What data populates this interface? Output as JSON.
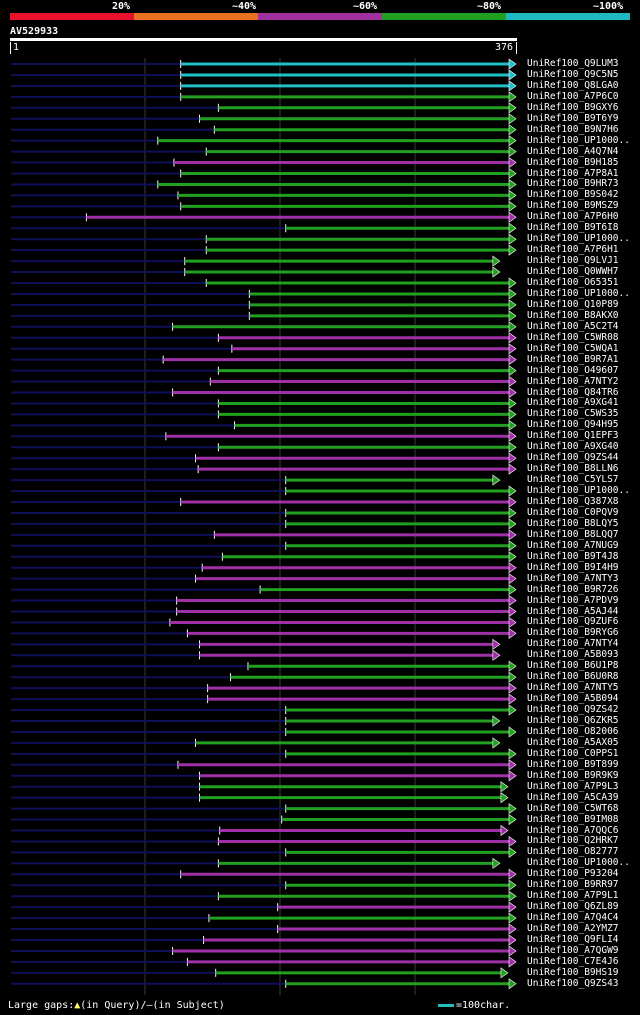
{
  "legend": {
    "labels": [
      "20%",
      "~40%",
      "~60%",
      "~80%",
      "~100%"
    ],
    "colors": [
      "#e8102a",
      "#e87020",
      "#a030a0",
      "#20a020",
      "#20b8c0"
    ]
  },
  "query": {
    "id": "AV529933",
    "start": "1",
    "end": "376"
  },
  "footer": {
    "gaps_prefix": "Large gaps:",
    "gaps_query": "(in Query)/",
    "gaps_dash": "—",
    "gaps_subject": "(in Subject)",
    "scale": "=100char."
  },
  "chart_data": {
    "type": "alignment",
    "query_length": 376,
    "hits": [
      {
        "name": "UniRef100_Q9LUM3",
        "start": 127,
        "end": 376,
        "color": "cyan",
        "arrow": true
      },
      {
        "name": "UniRef100_Q9C5N5",
        "start": 127,
        "end": 376,
        "color": "cyan",
        "arrow": true
      },
      {
        "name": "UniRef100_Q8LGA0",
        "start": 127,
        "end": 376,
        "color": "cyan",
        "arrow": true
      },
      {
        "name": "UniRef100_A7P6C0",
        "start": 127,
        "end": 376,
        "color": "green",
        "arrow": true
      },
      {
        "name": "UniRef100_B9GXY6",
        "start": 155,
        "end": 376,
        "color": "green",
        "arrow": true
      },
      {
        "name": "UniRef100_B9T6Y9",
        "start": 141,
        "end": 376,
        "color": "green",
        "arrow": true
      },
      {
        "name": "UniRef100_B9N7H6",
        "start": 152,
        "end": 376,
        "color": "green",
        "arrow": true
      },
      {
        "name": "UniRef100_UP1000..",
        "start": 110,
        "end": 376,
        "color": "green",
        "arrow": true
      },
      {
        "name": "UniRef100_A4Q7N4",
        "start": 146,
        "end": 376,
        "color": "green",
        "arrow": true
      },
      {
        "name": "UniRef100_B9H185",
        "start": 122,
        "end": 376,
        "color": "purple",
        "arrow": true
      },
      {
        "name": "UniRef100_A7P8A1",
        "start": 127,
        "end": 376,
        "color": "green",
        "arrow": true
      },
      {
        "name": "UniRef100_B9HR73",
        "start": 110,
        "end": 376,
        "color": "green",
        "arrow": true
      },
      {
        "name": "UniRef100_B9S042",
        "start": 125,
        "end": 376,
        "color": "green",
        "arrow": true
      },
      {
        "name": "UniRef100_B9MSZ9",
        "start": 127,
        "end": 376,
        "color": "green",
        "arrow": true
      },
      {
        "name": "UniRef100_A7P6H0",
        "start": 57,
        "end": 376,
        "color": "purple",
        "arrow": true
      },
      {
        "name": "UniRef100_B9T6I8",
        "start": 205,
        "end": 376,
        "color": "green",
        "arrow": true
      },
      {
        "name": "UniRef100_UP1000..",
        "start": 146,
        "end": 376,
        "color": "green",
        "arrow": true
      },
      {
        "name": "UniRef100_A7P6H1",
        "start": 146,
        "end": 376,
        "color": "green",
        "arrow": true
      },
      {
        "name": "UniRef100_Q9LVJ1",
        "start": 130,
        "end": 364,
        "color": "green",
        "arrow": true
      },
      {
        "name": "UniRef100_Q0WWH7",
        "start": 130,
        "end": 364,
        "color": "green",
        "arrow": true
      },
      {
        "name": "UniRef100_O65351",
        "start": 146,
        "end": 376,
        "color": "green",
        "arrow": true
      },
      {
        "name": "UniRef100_UP1000..",
        "start": 178,
        "end": 376,
        "color": "green",
        "arrow": true
      },
      {
        "name": "UniRef100_Q10P89",
        "start": 178,
        "end": 376,
        "color": "green",
        "arrow": true
      },
      {
        "name": "UniRef100_B8AKX0",
        "start": 178,
        "end": 376,
        "color": "green",
        "arrow": true
      },
      {
        "name": "UniRef100_A5C2T4",
        "start": 121,
        "end": 376,
        "color": "green",
        "arrow": true
      },
      {
        "name": "UniRef100_C5WR08",
        "start": 155,
        "end": 376,
        "color": "purple",
        "arrow": true
      },
      {
        "name": "UniRef100_C5WQA1",
        "start": 165,
        "end": 376,
        "color": "purple",
        "arrow": true
      },
      {
        "name": "UniRef100_B9R7A1",
        "start": 114,
        "end": 376,
        "color": "purple",
        "arrow": true
      },
      {
        "name": "UniRef100_O49607",
        "start": 155,
        "end": 376,
        "color": "green",
        "arrow": true
      },
      {
        "name": "UniRef100_A7NTY2",
        "start": 149,
        "end": 376,
        "color": "purple",
        "arrow": true
      },
      {
        "name": "UniRef100_Q84TR6",
        "start": 121,
        "end": 376,
        "color": "purple",
        "arrow": true
      },
      {
        "name": "UniRef100_A9XG41",
        "start": 155,
        "end": 376,
        "color": "green",
        "arrow": true
      },
      {
        "name": "UniRef100_C5WS35",
        "start": 155,
        "end": 376,
        "color": "green",
        "arrow": true
      },
      {
        "name": "UniRef100_Q94H95",
        "start": 167,
        "end": 376,
        "color": "green",
        "arrow": true
      },
      {
        "name": "UniRef100_Q1EPF3",
        "start": 116,
        "end": 376,
        "color": "purple",
        "arrow": true
      },
      {
        "name": "UniRef100_A9XG40",
        "start": 155,
        "end": 376,
        "color": "green",
        "arrow": true
      },
      {
        "name": "UniRef100_Q9ZS44",
        "start": 138,
        "end": 376,
        "color": "purple",
        "arrow": true
      },
      {
        "name": "UniRef100_B8LLN6",
        "start": 140,
        "end": 376,
        "color": "purple",
        "arrow": true
      },
      {
        "name": "UniRef100_C5YLS7",
        "start": 205,
        "end": 364,
        "color": "green",
        "arrow": true
      },
      {
        "name": "UniRef100_UP1000..",
        "start": 205,
        "end": 376,
        "color": "green",
        "arrow": true
      },
      {
        "name": "UniRef100_Q387X8",
        "start": 127,
        "end": 376,
        "color": "purple",
        "arrow": true
      },
      {
        "name": "UniRef100_C0PQV9",
        "start": 205,
        "end": 376,
        "color": "green",
        "arrow": true
      },
      {
        "name": "UniRef100_B8LQY5",
        "start": 205,
        "end": 376,
        "color": "green",
        "arrow": true
      },
      {
        "name": "UniRef100_B8LQQ7",
        "start": 152,
        "end": 376,
        "color": "purple",
        "arrow": true
      },
      {
        "name": "UniRef100_A7NUG9",
        "start": 205,
        "end": 376,
        "color": "green",
        "arrow": true
      },
      {
        "name": "UniRef100_B9T4J8",
        "start": 158,
        "end": 376,
        "color": "green",
        "arrow": true
      },
      {
        "name": "UniRef100_B9I4H9",
        "start": 143,
        "end": 376,
        "color": "purple",
        "arrow": true
      },
      {
        "name": "UniRef100_A7NTY3",
        "start": 138,
        "end": 376,
        "color": "purple",
        "arrow": true
      },
      {
        "name": "UniRef100_B9R726",
        "start": 186,
        "end": 376,
        "color": "green",
        "arrow": true
      },
      {
        "name": "UniRef100_A7PDV9",
        "start": 124,
        "end": 376,
        "color": "purple",
        "arrow": true
      },
      {
        "name": "UniRef100_A5AJ44",
        "start": 124,
        "end": 376,
        "color": "purple",
        "arrow": true
      },
      {
        "name": "UniRef100_Q9ZUF6",
        "start": 119,
        "end": 376,
        "color": "purple",
        "arrow": true
      },
      {
        "name": "UniRef100_B9RYG6",
        "start": 132,
        "end": 376,
        "color": "purple",
        "arrow": true
      },
      {
        "name": "UniRef100_A7NTY4",
        "start": 141,
        "end": 364,
        "color": "purple",
        "arrow": true
      },
      {
        "name": "UniRef100_A5B093",
        "start": 141,
        "end": 364,
        "color": "purple",
        "arrow": true
      },
      {
        "name": "UniRef100_B6U1P8",
        "start": 177,
        "end": 376,
        "color": "green",
        "arrow": true
      },
      {
        "name": "UniRef100_B6U0R8",
        "start": 164,
        "end": 376,
        "color": "green",
        "arrow": true
      },
      {
        "name": "UniRef100_A7NTY5",
        "start": 147,
        "end": 376,
        "color": "purple",
        "arrow": true
      },
      {
        "name": "UniRef100_A5B094",
        "start": 147,
        "end": 376,
        "color": "purple",
        "arrow": true
      },
      {
        "name": "UniRef100_Q9ZS42",
        "start": 205,
        "end": 376,
        "color": "green",
        "arrow": true
      },
      {
        "name": "UniRef100_Q6ZKR5",
        "start": 205,
        "end": 364,
        "color": "green",
        "arrow": true
      },
      {
        "name": "UniRef100_O82006",
        "start": 205,
        "end": 376,
        "color": "green",
        "arrow": true
      },
      {
        "name": "UniRef100_A5AX05",
        "start": 138,
        "end": 364,
        "color": "green",
        "arrow": true
      },
      {
        "name": "UniRef100_C0PPS1",
        "start": 205,
        "end": 376,
        "color": "green",
        "arrow": true
      },
      {
        "name": "UniRef100_B9T899",
        "start": 125,
        "end": 376,
        "color": "purple",
        "arrow": true
      },
      {
        "name": "UniRef100_B9R9K9",
        "start": 141,
        "end": 376,
        "color": "purple",
        "arrow": true
      },
      {
        "name": "UniRef100_A7P9L3",
        "start": 141,
        "end": 370,
        "color": "green",
        "arrow": true
      },
      {
        "name": "UniRef100_A5CA39",
        "start": 141,
        "end": 370,
        "color": "green",
        "arrow": true
      },
      {
        "name": "UniRef100_C5WT68",
        "start": 205,
        "end": 376,
        "color": "green",
        "arrow": true
      },
      {
        "name": "UniRef100_B9IM08",
        "start": 202,
        "end": 376,
        "color": "green",
        "arrow": true
      },
      {
        "name": "UniRef100_A7QQC6",
        "start": 156,
        "end": 370,
        "color": "purple",
        "arrow": true
      },
      {
        "name": "UniRef100_Q2HRK7",
        "start": 155,
        "end": 376,
        "color": "purple",
        "arrow": true
      },
      {
        "name": "UniRef100_O82777",
        "start": 205,
        "end": 376,
        "color": "green",
        "arrow": true
      },
      {
        "name": "UniRef100_UP1000..",
        "start": 155,
        "end": 364,
        "color": "green",
        "arrow": true
      },
      {
        "name": "UniRef100_P93204",
        "start": 127,
        "end": 376,
        "color": "purple",
        "arrow": true
      },
      {
        "name": "UniRef100_B9RR97",
        "start": 205,
        "end": 376,
        "color": "green",
        "arrow": true
      },
      {
        "name": "UniRef100_A7P9L1",
        "start": 155,
        "end": 376,
        "color": "green",
        "arrow": true
      },
      {
        "name": "UniRef100_Q6ZL89",
        "start": 199,
        "end": 376,
        "color": "purple",
        "arrow": true
      },
      {
        "name": "UniRef100_A7Q4C4",
        "start": 148,
        "end": 376,
        "color": "green",
        "arrow": true
      },
      {
        "name": "UniRef100_A2YMZ7",
        "start": 199,
        "end": 376,
        "color": "purple",
        "arrow": true
      },
      {
        "name": "UniRef100_Q9FLI4",
        "start": 144,
        "end": 376,
        "color": "purple",
        "arrow": true
      },
      {
        "name": "UniRef100_A7QGW9",
        "start": 121,
        "end": 376,
        "color": "purple",
        "arrow": true
      },
      {
        "name": "UniRef100_C7E4J6",
        "start": 132,
        "end": 376,
        "color": "purple",
        "arrow": true
      },
      {
        "name": "UniRef100_B9HS19",
        "start": 153,
        "end": 370,
        "color": "green",
        "arrow": true
      },
      {
        "name": "UniRef100_Q9ZS43",
        "start": 205,
        "end": 376,
        "color": "green",
        "arrow": true
      }
    ]
  }
}
